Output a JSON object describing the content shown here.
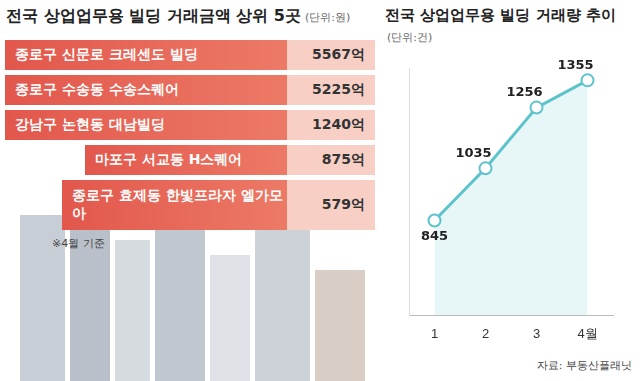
{
  "ranking": {
    "title": "전국 상업업무용 빌딩 거래금액 상위 5곳",
    "unit": "(단위:원)",
    "rows": [
      {
        "label": "종로구 신문로 크레센도 빌딩",
        "value": "5567억"
      },
      {
        "label": "종로구 수송동 수송스퀘어",
        "value": "5225억"
      },
      {
        "label": "강남구 논현동 대남빌딩",
        "value": "1240억"
      },
      {
        "label": "마포구 서교동 H스퀘어",
        "value": "875억"
      },
      {
        "label": "종로구 효제동 한빛프라자 엘가모아",
        "value": "579억"
      }
    ],
    "note": "※4월 기준"
  },
  "chart_data": {
    "type": "line",
    "title": "전국 상업업무용 빌딩 거래량 추이",
    "subtitle": "(단위:건)",
    "categories": [
      "1",
      "2",
      "3",
      "4월"
    ],
    "values": [
      845,
      1035,
      1256,
      1355
    ],
    "color": "#5cc3cc",
    "marker": "circle",
    "ylim": [
      500,
      1400
    ],
    "grid": false,
    "data_labels": true,
    "tick_labels": "x"
  },
  "source": "자료: 부동산플래닛"
}
